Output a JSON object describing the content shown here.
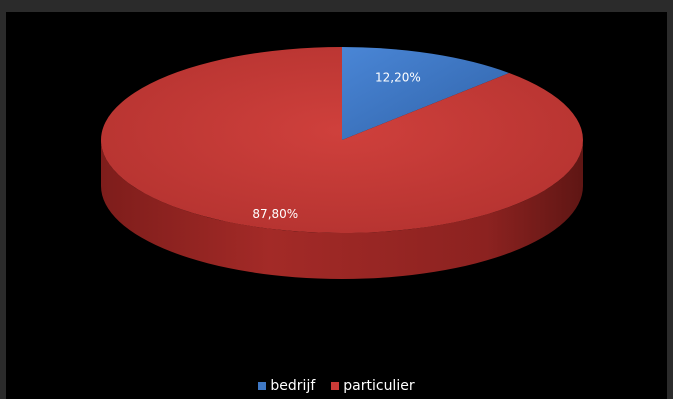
{
  "chart_data": {
    "type": "pie",
    "title": "",
    "slices": [
      {
        "label": "bedrijf",
        "value": 12.2,
        "display": "12,20%",
        "color": "#3f78c4"
      },
      {
        "label": "particulier",
        "value": 87.8,
        "display": "87,80%",
        "color": "#c83a36"
      }
    ],
    "legend_position": "bottom",
    "style": "3d"
  },
  "legend": {
    "items": [
      {
        "label": "bedrijf",
        "color": "#3f78c4"
      },
      {
        "label": "particulier",
        "color": "#c83a36"
      }
    ]
  }
}
